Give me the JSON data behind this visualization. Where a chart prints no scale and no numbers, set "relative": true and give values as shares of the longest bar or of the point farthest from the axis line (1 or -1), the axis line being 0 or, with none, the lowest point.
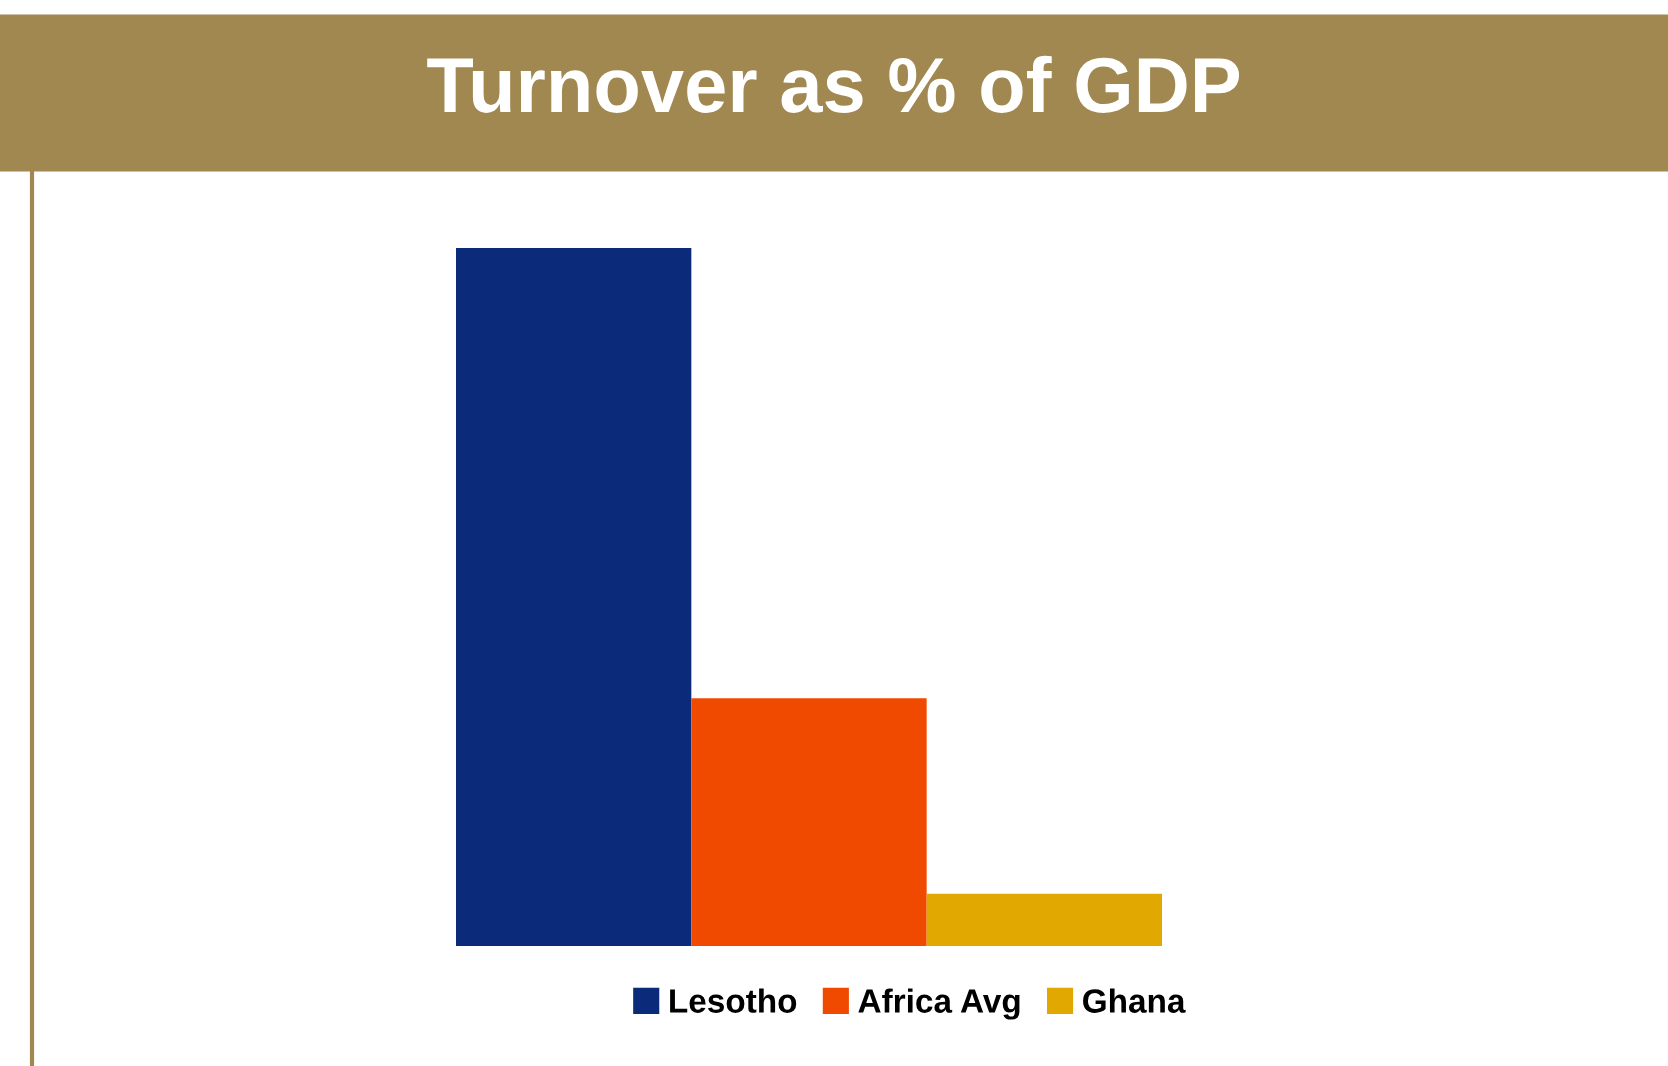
{
  "chart_data": {
    "type": "bar",
    "title": "Turnover as % of GDP",
    "relative": true,
    "categories": [
      null
    ],
    "series": [
      {
        "name": "Lesotho",
        "color": "#0b2a7a",
        "values": [
          1
        ]
      },
      {
        "name": "Africa Avg",
        "color": "#f04a00",
        "values": [
          0.355
        ]
      },
      {
        "name": "Ghana",
        "color": "#e0a800",
        "values": [
          0.075
        ]
      }
    ],
    "legend": "bottom",
    "grid": false
  }
}
